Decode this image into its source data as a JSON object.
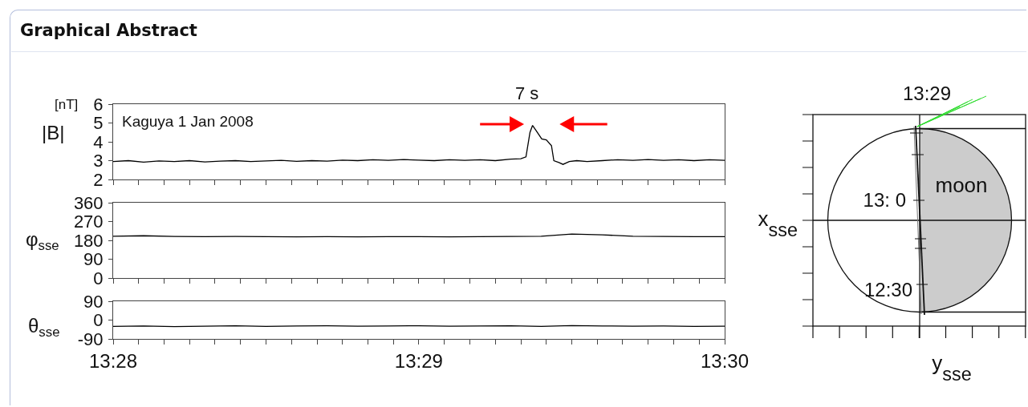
{
  "chart_data": [
    {
      "type": "line",
      "title": "Graphical Abstract",
      "ylabel": "|B|",
      "annotations": [
        "[nT]",
        "Kaguya 1 Jan 2008",
        "7 s"
      ],
      "tick_labels": "y",
      "color": "#000000",
      "x": [
        13.46667,
        13.4675,
        13.46833,
        13.46917,
        13.47,
        13.47083,
        13.47167,
        13.4725,
        13.47333,
        13.47417,
        13.475,
        13.47583,
        13.47667,
        13.4775,
        13.47833,
        13.47917,
        13.48,
        13.48083,
        13.48167,
        13.4825,
        13.48333,
        13.48417,
        13.485,
        13.48583,
        13.48667,
        13.4875,
        13.48833,
        13.48889,
        13.48917,
        13.48939,
        13.48953,
        13.48972,
        13.49003,
        13.49028,
        13.49056,
        13.49069,
        13.49097,
        13.49119,
        13.49153,
        13.49194,
        13.4925,
        13.49333,
        13.49417,
        13.495,
        13.49583,
        13.49667,
        13.4975,
        13.49833,
        13.49917,
        13.5
      ],
      "values": [
        2.95,
        3.0,
        2.92,
        2.98,
        2.95,
        3.0,
        2.93,
        2.97,
        3.0,
        2.95,
        2.98,
        3.02,
        2.96,
        3.0,
        2.97,
        3.03,
        3.0,
        3.05,
        3.02,
        3.06,
        3.03,
        3.0,
        3.05,
        3.02,
        3.05,
        3.0,
        3.08,
        3.1,
        3.2,
        4.5,
        4.87,
        4.6,
        4.15,
        4.1,
        3.8,
        3.0,
        2.9,
        2.8,
        2.95,
        3.0,
        2.95,
        3.0,
        3.05,
        3.02,
        3.06,
        3.02,
        3.05,
        3.0,
        3.05,
        3.02
      ],
      "xlim": [
        13.46667,
        13.5
      ],
      "ylim": [
        2,
        6
      ],
      "yticks": [
        2,
        3,
        4,
        5,
        6
      ],
      "xticks": [
        {
          "value": 13.46667,
          "label": null
        },
        {
          "value": 13.46806,
          "label": null
        },
        {
          "value": 13.46944,
          "label": null
        },
        {
          "value": 13.47083,
          "label": null
        },
        {
          "value": 13.47222,
          "label": null
        },
        {
          "value": 13.47361,
          "label": null
        },
        {
          "value": 13.475,
          "label": null
        },
        {
          "value": 13.47639,
          "label": null
        },
        {
          "value": 13.47778,
          "label": null
        },
        {
          "value": 13.47917,
          "label": null
        },
        {
          "value": 13.48056,
          "label": null
        },
        {
          "value": 13.48194,
          "label": null
        },
        {
          "value": 13.48333,
          "label": null
        },
        {
          "value": 13.48472,
          "label": null
        },
        {
          "value": 13.48611,
          "label": null
        },
        {
          "value": 13.4875,
          "label": null
        },
        {
          "value": 13.48889,
          "label": null
        },
        {
          "value": 13.49028,
          "label": null
        },
        {
          "value": 13.49167,
          "label": null
        },
        {
          "value": 13.49306,
          "label": null
        },
        {
          "value": 13.49444,
          "label": null
        },
        {
          "value": 13.49583,
          "label": null
        },
        {
          "value": 13.49722,
          "label": null
        },
        {
          "value": 13.49861,
          "label": null
        },
        {
          "value": 13.5,
          "label": null
        }
      ]
    },
    {
      "type": "line",
      "ylabel": "φ$_{sse}$",
      "tick_labels": "y",
      "color": "#000000",
      "x": [
        13.46667,
        13.46833,
        13.47,
        13.47167,
        13.47333,
        13.475,
        13.47667,
        13.47833,
        13.48,
        13.48167,
        13.48333,
        13.485,
        13.48667,
        13.48833,
        13.49,
        13.49167,
        13.49333,
        13.495,
        13.49667,
        13.49833,
        13.5
      ],
      "values": [
        200,
        202,
        199,
        198,
        199,
        198,
        197,
        198,
        197,
        198,
        198,
        197,
        198,
        199,
        200,
        210,
        206,
        200,
        199,
        198,
        198
      ],
      "xlim": [
        13.46667,
        13.5
      ],
      "ylim": [
        0,
        360
      ],
      "yticks": [
        0,
        90,
        180,
        270,
        360
      ],
      "xticks": [
        {
          "value": 13.46667,
          "label": null
        },
        {
          "value": 13.46806,
          "label": null
        },
        {
          "value": 13.46944,
          "label": null
        },
        {
          "value": 13.47083,
          "label": null
        },
        {
          "value": 13.47222,
          "label": null
        },
        {
          "value": 13.47361,
          "label": null
        },
        {
          "value": 13.475,
          "label": null
        },
        {
          "value": 13.47639,
          "label": null
        },
        {
          "value": 13.47778,
          "label": null
        },
        {
          "value": 13.47917,
          "label": null
        },
        {
          "value": 13.48056,
          "label": null
        },
        {
          "value": 13.48194,
          "label": null
        },
        {
          "value": 13.48333,
          "label": null
        },
        {
          "value": 13.48472,
          "label": null
        },
        {
          "value": 13.48611,
          "label": null
        },
        {
          "value": 13.4875,
          "label": null
        },
        {
          "value": 13.48889,
          "label": null
        },
        {
          "value": 13.49028,
          "label": null
        },
        {
          "value": 13.49167,
          "label": null
        },
        {
          "value": 13.49306,
          "label": null
        },
        {
          "value": 13.49444,
          "label": null
        },
        {
          "value": 13.49583,
          "label": null
        },
        {
          "value": 13.49722,
          "label": null
        },
        {
          "value": 13.49861,
          "label": null
        },
        {
          "value": 13.5,
          "label": null
        }
      ]
    },
    {
      "type": "line",
      "ylabel": "θ$_{sse}$",
      "color": "#000000",
      "x": [
        13.46667,
        13.46833,
        13.47,
        13.47167,
        13.47333,
        13.475,
        13.47667,
        13.47833,
        13.48,
        13.48167,
        13.48333,
        13.485,
        13.48667,
        13.48833,
        13.49,
        13.49167,
        13.49333,
        13.495,
        13.49667,
        13.49833,
        13.5
      ],
      "values": [
        -30,
        -28,
        -31,
        -29,
        -27,
        -30,
        -28,
        -27,
        -29,
        -28,
        -27,
        -29,
        -28,
        -27,
        -30,
        -26,
        -28,
        -29,
        -28,
        -30,
        -29
      ],
      "xlim": [
        13.46667,
        13.5
      ],
      "ylim": [
        -90,
        90
      ],
      "yticks": [
        -90,
        0,
        90
      ],
      "xticks": [
        {
          "value": 13.46667,
          "label": "13:28"
        },
        {
          "value": 13.46806,
          "label": null
        },
        {
          "value": 13.46944,
          "label": null
        },
        {
          "value": 13.47083,
          "label": null
        },
        {
          "value": 13.47222,
          "label": null
        },
        {
          "value": 13.47361,
          "label": null
        },
        {
          "value": 13.475,
          "label": null
        },
        {
          "value": 13.47639,
          "label": null
        },
        {
          "value": 13.47778,
          "label": null
        },
        {
          "value": 13.47917,
          "label": null
        },
        {
          "value": 13.48056,
          "label": null
        },
        {
          "value": 13.48194,
          "label": null
        },
        {
          "value": 13.48333,
          "label": "13:29"
        },
        {
          "value": 13.48472,
          "label": null
        },
        {
          "value": 13.48611,
          "label": null
        },
        {
          "value": 13.4875,
          "label": null
        },
        {
          "value": 13.48889,
          "label": null
        },
        {
          "value": 13.49028,
          "label": null
        },
        {
          "value": 13.49167,
          "label": null
        },
        {
          "value": 13.49306,
          "label": null
        },
        {
          "value": 13.49444,
          "label": null
        },
        {
          "value": 13.49583,
          "label": null
        },
        {
          "value": 13.49722,
          "label": null
        },
        {
          "value": 13.49861,
          "label": null
        },
        {
          "value": 13.5,
          "label": "13:30"
        }
      ]
    },
    {
      "type": "other",
      "xlabel": "y$_{sse}$",
      "ylabel": "x$_{sse}$",
      "annotations": [
        "13:29",
        "13: 0",
        "12:30",
        "moon"
      ]
    }
  ]
}
